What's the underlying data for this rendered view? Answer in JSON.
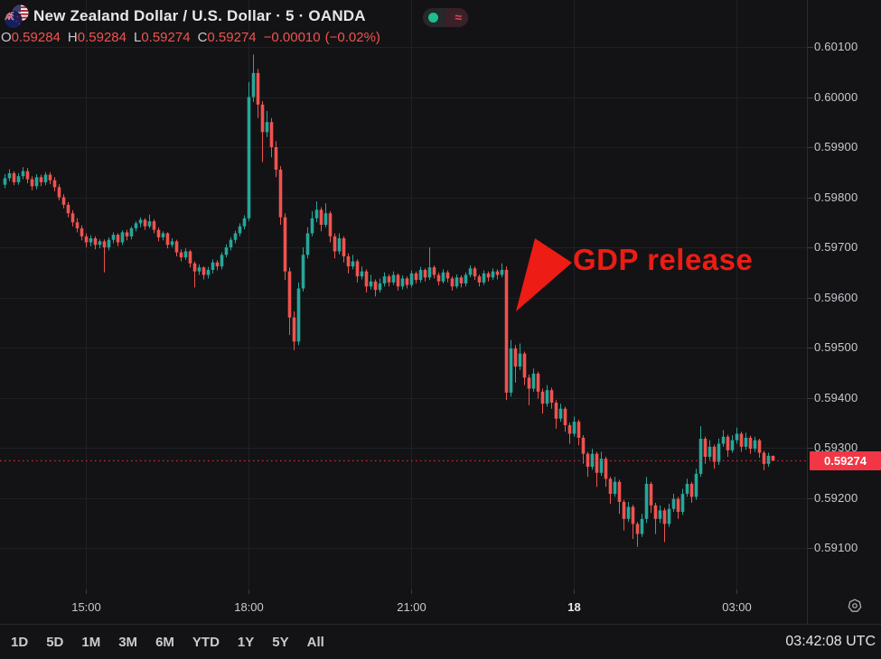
{
  "header": {
    "symbol_title": "New Zealand Dollar / U.S. Dollar · 5 · OANDA",
    "status_toggle": {
      "approx_symbol": "≈"
    },
    "ohlc": {
      "open_label": "O",
      "open": "0.59284",
      "high_label": "H",
      "high": "0.59284",
      "low_label": "L",
      "low": "0.59274",
      "close_label": "C",
      "close": "0.59274",
      "change": "−0.00010",
      "change_pct": "(−0.02%)"
    }
  },
  "chart_data": {
    "type": "candlestick",
    "symbol": "NZD/USD",
    "interval": "5",
    "exchange": "OANDA",
    "title": "New Zealand Dollar / U.S. Dollar",
    "price_multiplier": 1e-05,
    "note": "candles are [open,high,low,close] in units of 0.00001; 5-minute bars, UTC",
    "start_time": "13:30",
    "interval_minutes": 5,
    "candles": [
      [
        59825,
        59846,
        59818,
        59838
      ],
      [
        59838,
        59856,
        59832,
        59848
      ],
      [
        59848,
        59852,
        59824,
        59830
      ],
      [
        59830,
        59848,
        59825,
        59842
      ],
      [
        59842,
        59860,
        59836,
        59852
      ],
      [
        59852,
        59858,
        59828,
        59836
      ],
      [
        59836,
        59842,
        59814,
        59822
      ],
      [
        59822,
        59846,
        59816,
        59840
      ],
      [
        59840,
        59845,
        59822,
        59830
      ],
      [
        59830,
        59850,
        59824,
        59845
      ],
      [
        59845,
        59850,
        59826,
        59834
      ],
      [
        59834,
        59840,
        59812,
        59820
      ],
      [
        59820,
        59826,
        59794,
        59800
      ],
      [
        59800,
        59806,
        59778,
        59785
      ],
      [
        59785,
        59790,
        59760,
        59768
      ],
      [
        59768,
        59774,
        59742,
        59750
      ],
      [
        59750,
        59758,
        59730,
        59738
      ],
      [
        59738,
        59744,
        59714,
        59722
      ],
      [
        59722,
        59728,
        59700,
        59710
      ],
      [
        59710,
        59724,
        59702,
        59718
      ],
      [
        59718,
        59722,
        59696,
        59705
      ],
      [
        59705,
        59716,
        59698,
        59712
      ],
      [
        59712,
        59716,
        59650,
        59700
      ],
      [
        59700,
        59720,
        59694,
        59715
      ],
      [
        59715,
        59730,
        59708,
        59725
      ],
      [
        59725,
        59728,
        59702,
        59710
      ],
      [
        59710,
        59734,
        59705,
        59730
      ],
      [
        59730,
        59735,
        59714,
        59722
      ],
      [
        59722,
        59742,
        59716,
        59738
      ],
      [
        59738,
        59752,
        59732,
        59748
      ],
      [
        59748,
        59760,
        59740,
        59755
      ],
      [
        59755,
        59758,
        59735,
        59742
      ],
      [
        59742,
        59765,
        59738,
        59752
      ],
      [
        59752,
        59756,
        59728,
        59735
      ],
      [
        59735,
        59740,
        59712,
        59720
      ],
      [
        59720,
        59732,
        59714,
        59728
      ],
      [
        59728,
        59730,
        59698,
        59705
      ],
      [
        59705,
        59718,
        59700,
        59712
      ],
      [
        59712,
        59715,
        59682,
        59690
      ],
      [
        59690,
        59696,
        59672,
        59680
      ],
      [
        59680,
        59698,
        59675,
        59692
      ],
      [
        59692,
        59695,
        59660,
        59668
      ],
      [
        59668,
        59672,
        59620,
        59652
      ],
      [
        59652,
        59666,
        59645,
        59660
      ],
      [
        59660,
        59662,
        59636,
        59645
      ],
      [
        59645,
        59661,
        59638,
        59655
      ],
      [
        59655,
        59676,
        59648,
        59670
      ],
      [
        59670,
        59674,
        59654,
        59662
      ],
      [
        59662,
        59690,
        59656,
        59685
      ],
      [
        59685,
        59706,
        59680,
        59700
      ],
      [
        59700,
        59720,
        59694,
        59715
      ],
      [
        59715,
        59733,
        59708,
        59728
      ],
      [
        59728,
        59748,
        59722,
        59742
      ],
      [
        59742,
        59764,
        59736,
        59758
      ],
      [
        59758,
        60030,
        59752,
        60000
      ],
      [
        60000,
        60085,
        59990,
        60048
      ],
      [
        60048,
        60056,
        59958,
        59985
      ],
      [
        59985,
        59992,
        59870,
        59930
      ],
      [
        59930,
        59972,
        59920,
        59950
      ],
      [
        59950,
        59958,
        59880,
        59900
      ],
      [
        59900,
        59912,
        59840,
        59855
      ],
      [
        59855,
        59862,
        59745,
        59760
      ],
      [
        59760,
        59768,
        59635,
        59652
      ],
      [
        59652,
        59660,
        59525,
        59560
      ],
      [
        59560,
        59572,
        59495,
        59512
      ],
      [
        59512,
        59630,
        59505,
        59618
      ],
      [
        59618,
        59700,
        59612,
        59685
      ],
      [
        59685,
        59740,
        59678,
        59728
      ],
      [
        59728,
        59772,
        59722,
        59758
      ],
      [
        59758,
        59792,
        59750,
        59775
      ],
      [
        59775,
        59780,
        59732,
        59745
      ],
      [
        59745,
        59788,
        59740,
        59768
      ],
      [
        59768,
        59772,
        59710,
        59722
      ],
      [
        59722,
        59728,
        59678,
        59692
      ],
      [
        59692,
        59728,
        59686,
        59718
      ],
      [
        59718,
        59722,
        59670,
        59682
      ],
      [
        59682,
        59688,
        59648,
        59662
      ],
      [
        59662,
        59685,
        59656,
        59672
      ],
      [
        59672,
        59676,
        59630,
        59642
      ],
      [
        59642,
        59662,
        59636,
        59652
      ],
      [
        59652,
        59656,
        59610,
        59622
      ],
      [
        59622,
        59645,
        59616,
        59632
      ],
      [
        59632,
        59636,
        59602,
        59615
      ],
      [
        59615,
        59638,
        59610,
        59628
      ],
      [
        59628,
        59650,
        59622,
        59642
      ],
      [
        59642,
        59646,
        59622,
        59630
      ],
      [
        59630,
        59652,
        59625,
        59645
      ],
      [
        59645,
        59648,
        59614,
        59622
      ],
      [
        59622,
        59644,
        59616,
        59638
      ],
      [
        59638,
        59642,
        59618,
        59625
      ],
      [
        59625,
        59654,
        59620,
        59648
      ],
      [
        59648,
        59652,
        59628,
        59635
      ],
      [
        59635,
        59661,
        59630,
        59655
      ],
      [
        59655,
        59658,
        59632,
        59640
      ],
      [
        59640,
        59700,
        59635,
        59660
      ],
      [
        59660,
        59664,
        59638,
        59645
      ],
      [
        59645,
        59650,
        59624,
        59632
      ],
      [
        59632,
        59656,
        59628,
        59650
      ],
      [
        59650,
        59654,
        59630,
        59638
      ],
      [
        59638,
        59642,
        59614,
        59622
      ],
      [
        59622,
        59646,
        59618,
        59640
      ],
      [
        59640,
        59644,
        59620,
        59628
      ],
      [
        59628,
        59650,
        59622,
        59645
      ],
      [
        59645,
        59664,
        59640,
        59658
      ],
      [
        59658,
        59662,
        59635,
        59642
      ],
      [
        59642,
        59646,
        59622,
        59630
      ],
      [
        59630,
        59654,
        59625,
        59648
      ],
      [
        59648,
        59652,
        59632,
        59640
      ],
      [
        59640,
        59658,
        59635,
        59652
      ],
      [
        59652,
        59656,
        59636,
        59645
      ],
      [
        59645,
        59668,
        59640,
        59655
      ],
      [
        59655,
        59662,
        59395,
        59410
      ],
      [
        59410,
        59515,
        59402,
        59498
      ],
      [
        59498,
        59505,
        59430,
        59462
      ],
      [
        59462,
        59508,
        59455,
        59488
      ],
      [
        59488,
        59492,
        59425,
        59440
      ],
      [
        59440,
        59446,
        59385,
        59418
      ],
      [
        59418,
        59458,
        59412,
        59448
      ],
      [
        59448,
        59452,
        59398,
        59412
      ],
      [
        59412,
        59418,
        59368,
        59388
      ],
      [
        59388,
        59425,
        59382,
        59415
      ],
      [
        59415,
        59420,
        59378,
        59390
      ],
      [
        59390,
        59395,
        59338,
        59358
      ],
      [
        59358,
        59388,
        59352,
        59378
      ],
      [
        59378,
        59382,
        59332,
        59345
      ],
      [
        59345,
        59350,
        59308,
        59328
      ],
      [
        59328,
        59362,
        59322,
        59352
      ],
      [
        59352,
        59356,
        59305,
        59320
      ],
      [
        59320,
        59325,
        59268,
        59288
      ],
      [
        59288,
        59292,
        59242,
        59262
      ],
      [
        59262,
        59298,
        59256,
        59288
      ],
      [
        59288,
        59292,
        59222,
        59250
      ],
      [
        59250,
        59292,
        59244,
        59278
      ],
      [
        59278,
        59282,
        59222,
        59238
      ],
      [
        59238,
        59242,
        59188,
        59208
      ],
      [
        59208,
        59242,
        59202,
        59232
      ],
      [
        59232,
        59236,
        59168,
        59192
      ],
      [
        59192,
        59196,
        59135,
        59158
      ],
      [
        59158,
        59192,
        59152,
        59182
      ],
      [
        59182,
        59186,
        59118,
        59148
      ],
      [
        59148,
        59152,
        59102,
        59128
      ],
      [
        59128,
        59168,
        59122,
        59158
      ],
      [
        59158,
        59242,
        59150,
        59228
      ],
      [
        59228,
        59232,
        59170,
        59185
      ],
      [
        59185,
        59190,
        59128,
        59158
      ],
      [
        59158,
        59185,
        59150,
        59175
      ],
      [
        59175,
        59180,
        59112,
        59148
      ],
      [
        59148,
        59188,
        59142,
        59178
      ],
      [
        59178,
        59208,
        59172,
        59198
      ],
      [
        59198,
        59202,
        59158,
        59172
      ],
      [
        59172,
        59218,
        59166,
        59208
      ],
      [
        59208,
        59238,
        59202,
        59228
      ],
      [
        59228,
        59232,
        59190,
        59202
      ],
      [
        59202,
        59258,
        59196,
        59248
      ],
      [
        59248,
        59343,
        59242,
        59318
      ],
      [
        59318,
        59322,
        59268,
        59282
      ],
      [
        59282,
        59315,
        59276,
        59302
      ],
      [
        59302,
        59306,
        59258,
        59272
      ],
      [
        59272,
        59318,
        59266,
        59308
      ],
      [
        59308,
        59335,
        59302,
        59322
      ],
      [
        59322,
        59326,
        59282,
        59295
      ],
      [
        59295,
        59325,
        59290,
        59315
      ],
      [
        59315,
        59340,
        59308,
        59328
      ],
      [
        59328,
        59332,
        59292,
        59302
      ],
      [
        59302,
        59330,
        59296,
        59320
      ],
      [
        59320,
        59324,
        59288,
        59298
      ],
      [
        59298,
        59322,
        59292,
        59315
      ],
      [
        59315,
        59318,
        59280,
        59290
      ],
      [
        59290,
        59294,
        59255,
        59268
      ],
      [
        59268,
        59290,
        59262,
        59284
      ],
      [
        59284,
        59284,
        59274,
        59274
      ]
    ],
    "y_axis": {
      "tick_labels": [
        "0.60100",
        "0.60000",
        "0.59900",
        "0.59800",
        "0.59700",
        "0.59600",
        "0.59500",
        "0.59400",
        "0.59300",
        "0.59200",
        "0.59100"
      ]
    },
    "x_axis": {
      "ticks": [
        {
          "label": "15:00",
          "index": 18
        },
        {
          "label": "18:00",
          "index": 54
        },
        {
          "label": "21:00",
          "index": 90
        },
        {
          "label": "18",
          "index": 126
        },
        {
          "label": "03:00",
          "index": 162
        }
      ]
    },
    "last_price": "0.59274",
    "colors": {
      "up": "#26a69a",
      "down": "#ef5350",
      "last_price": "#f23645",
      "grid": "#1e2024"
    },
    "annotation": {
      "text": "GDP release",
      "color": "#ed1c14",
      "arrow_points": "571,345 592,264 633,291"
    }
  },
  "toolbar": {
    "ranges": [
      "1D",
      "5D",
      "1M",
      "3M",
      "6M",
      "YTD",
      "1Y",
      "5Y",
      "All"
    ],
    "clock": "03:42:08 UTC"
  }
}
